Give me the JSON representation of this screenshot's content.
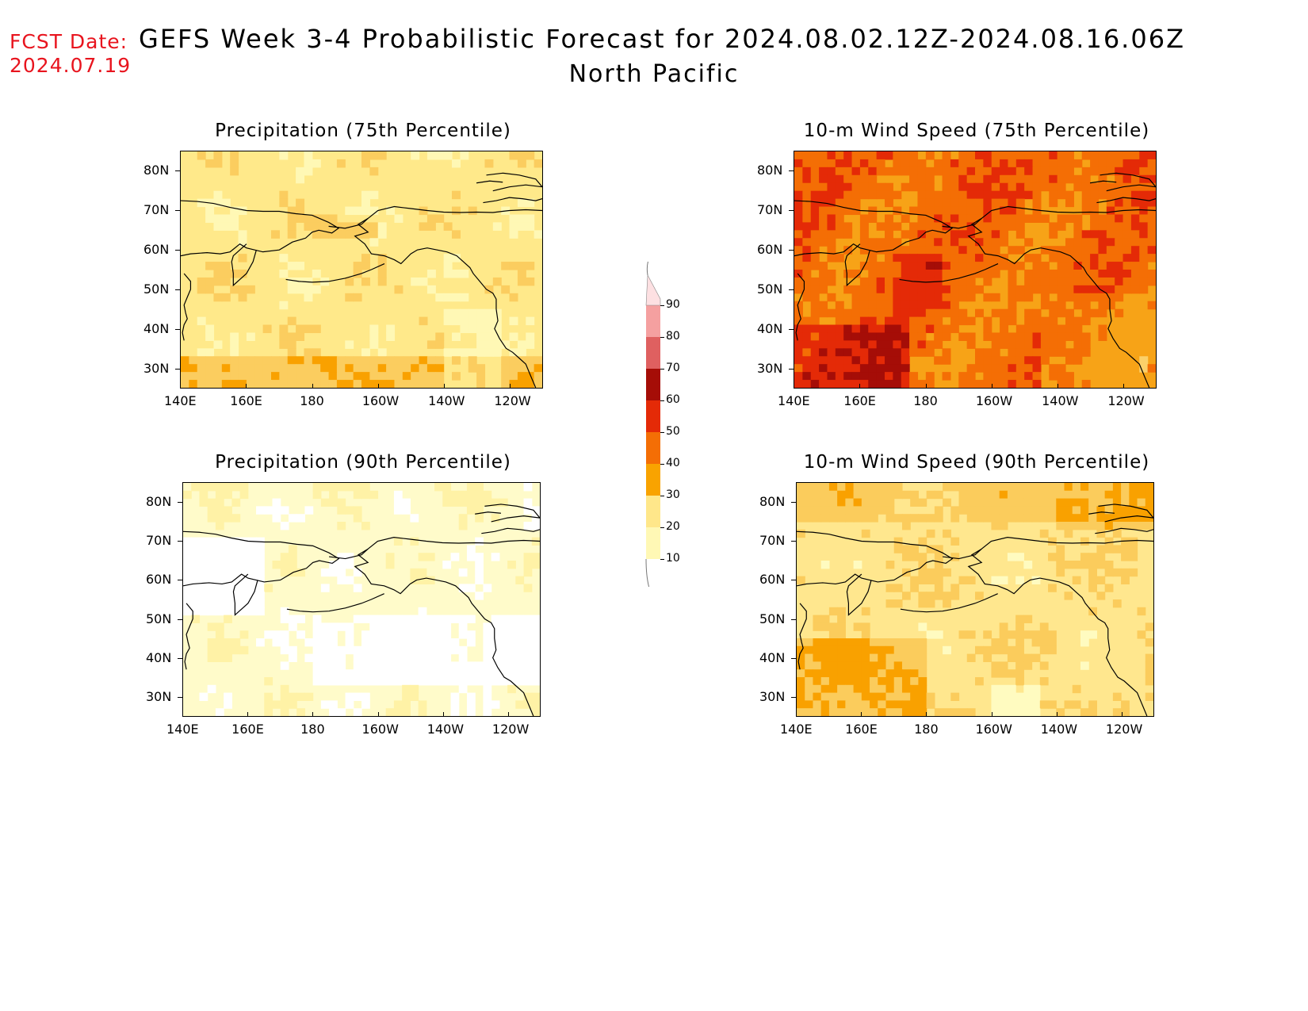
{
  "header": {
    "fcst_label": "FCST Date:",
    "fcst_date": "2024.07.19",
    "title": "GEFS Week 3-4 Probabilistic Forecast for 2024.08.02.12Z-2024.08.16.06Z",
    "subtitle": "North Pacific"
  },
  "panels": [
    {
      "id": "precip75",
      "title": "Precipitation (75th Percentile)",
      "palette": [
        "#fff8b5",
        "#ffe98a",
        "#fbcd5f",
        "#f9a100"
      ]
    },
    {
      "id": "wind75",
      "title": "10-m Wind Speed (75th Percentile)",
      "palette": [
        "#fbd06a",
        "#f7a317",
        "#f46e05",
        "#e42a07",
        "#a50d07"
      ]
    },
    {
      "id": "precip90",
      "title": "Precipitation (90th Percentile)",
      "palette": [
        "#ffffff",
        "#fffbca",
        "#fff2a6",
        "#ffe48a"
      ]
    },
    {
      "id": "wind90",
      "title": "10-m Wind Speed (90th Percentile)",
      "palette": [
        "#fffbc0",
        "#ffe78e",
        "#fbcc5c",
        "#f9a100",
        "#f46e05"
      ]
    }
  ],
  "axes": {
    "x_ticks": [
      "140E",
      "160E",
      "180",
      "160W",
      "140W",
      "120W"
    ],
    "y_ticks": [
      "80N",
      "70N",
      "60N",
      "50N",
      "40N",
      "30N"
    ]
  },
  "colorbar": {
    "levels": [
      "10",
      "20",
      "30",
      "40",
      "50",
      "60",
      "70",
      "80",
      "90"
    ],
    "colors": [
      "#fff8b5",
      "#ffe78a",
      "#f9a300",
      "#f46e05",
      "#e42a07",
      "#a50d07",
      "#df6060",
      "#f5a0a0",
      "#fde0e2"
    ]
  }
}
